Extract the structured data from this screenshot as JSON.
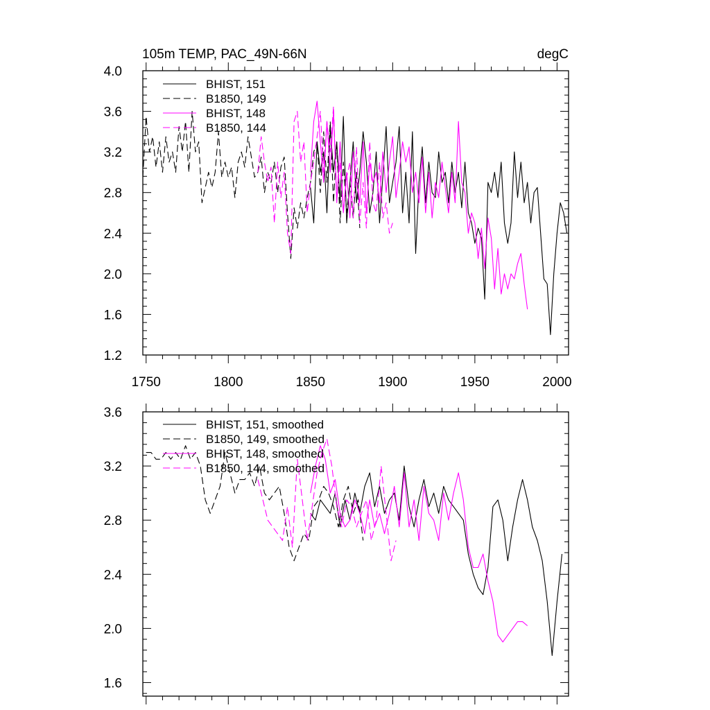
{
  "chart_data": [
    {
      "type": "line",
      "title": "105m TEMP, PAC_49N-66N",
      "units": "degC",
      "xlim": [
        1748,
        2007
      ],
      "ylim": [
        1.2,
        4.0
      ],
      "xticks": [
        1750,
        1800,
        1850,
        1900,
        1950,
        2000
      ],
      "yticks": [
        1.2,
        1.6,
        2.0,
        2.4,
        2.8,
        3.2,
        3.6,
        4.0
      ],
      "ytick_labels": [
        "1.2",
        "1.6",
        "2.0",
        "2.4",
        "2.8",
        "3.2",
        "3.6",
        "4.0"
      ],
      "xtick_labels": [
        "1750",
        "1800",
        "1850",
        "1900",
        "1950",
        "2000"
      ],
      "grid": false,
      "legend_position": "top-left",
      "series": [
        {
          "name": "BHIST, 151",
          "color": "#000000",
          "dash": "solid",
          "x": [
            1850,
            1852,
            1854,
            1856,
            1858,
            1860,
            1862,
            1864,
            1866,
            1868,
            1870,
            1872,
            1874,
            1876,
            1878,
            1880,
            1882,
            1884,
            1886,
            1888,
            1890,
            1892,
            1894,
            1896,
            1898,
            1900,
            1902,
            1904,
            1906,
            1908,
            1910,
            1912,
            1914,
            1916,
            1918,
            1920,
            1922,
            1924,
            1926,
            1928,
            1930,
            1932,
            1934,
            1936,
            1938,
            1940,
            1942,
            1944,
            1946,
            1948,
            1950,
            1952,
            1954,
            1956,
            1958,
            1960,
            1962,
            1964,
            1966,
            1968,
            1970,
            1972,
            1974,
            1976,
            1978,
            1980,
            1982,
            1984,
            1986,
            1988,
            1990,
            1992,
            1994,
            1996,
            1998,
            2000,
            2002,
            2004,
            2006
          ],
          "values": [
            2.85,
            2.5,
            3.3,
            3.0,
            3.2,
            2.6,
            3.45,
            3.0,
            3.3,
            2.7,
            3.55,
            2.5,
            2.9,
            3.3,
            2.7,
            3.0,
            3.4,
            3.1,
            2.6,
            2.8,
            3.2,
            2.5,
            2.95,
            3.45,
            2.7,
            2.9,
            3.1,
            3.45,
            2.6,
            3.0,
            2.5,
            3.4,
            2.2,
            2.9,
            3.25,
            2.7,
            3.1,
            2.8,
            2.75,
            3.2,
            2.9,
            3.0,
            2.7,
            3.1,
            2.8,
            3.0,
            2.65,
            3.1,
            2.6,
            2.5,
            2.3,
            2.45,
            2.35,
            1.75,
            2.9,
            2.8,
            3.0,
            2.75,
            3.1,
            2.5,
            2.3,
            2.5,
            3.2,
            2.75,
            3.1,
            2.7,
            2.9,
            2.5,
            2.8,
            2.85,
            2.4,
            1.95,
            1.9,
            1.4,
            2.0,
            2.4,
            2.7,
            2.6,
            2.4
          ]
        },
        {
          "name": "B1850, 149",
          "color": "#000000",
          "dash": "dashed",
          "x": [
            1748,
            1750,
            1752,
            1754,
            1756,
            1758,
            1760,
            1762,
            1764,
            1766,
            1768,
            1770,
            1772,
            1774,
            1776,
            1778,
            1780,
            1782,
            1784,
            1786,
            1788,
            1790,
            1792,
            1794,
            1796,
            1798,
            1800,
            1802,
            1804,
            1806,
            1808,
            1810,
            1812,
            1814,
            1816,
            1818,
            1820,
            1822,
            1824,
            1826,
            1828,
            1830,
            1832,
            1834,
            1836,
            1838,
            1840,
            1842,
            1844,
            1846,
            1848,
            1850,
            1852,
            1854,
            1856,
            1858,
            1860,
            1862,
            1864,
            1866,
            1868,
            1870,
            1872,
            1874,
            1876,
            1878,
            1880
          ],
          "values": [
            2.95,
            3.55,
            3.2,
            3.35,
            3.05,
            3.3,
            3.0,
            3.35,
            3.1,
            3.2,
            3.0,
            3.45,
            3.2,
            3.5,
            3.0,
            3.6,
            3.2,
            3.3,
            2.7,
            2.85,
            3.0,
            2.85,
            3.0,
            3.4,
            2.95,
            3.1,
            2.95,
            3.05,
            2.75,
            3.1,
            3.2,
            3.05,
            3.35,
            3.15,
            2.95,
            3.0,
            3.15,
            2.8,
            3.0,
            2.9,
            3.1,
            2.8,
            3.05,
            3.15,
            2.6,
            2.15,
            2.65,
            2.45,
            2.7,
            2.55,
            2.75,
            2.9,
            3.2,
            3.3,
            2.8,
            3.4,
            2.9,
            3.5,
            2.7,
            3.3,
            2.5,
            3.1,
            2.6,
            2.9,
            2.55,
            3.0,
            2.45
          ]
        },
        {
          "name": "BHIST, 148",
          "color": "#ff00ff",
          "dash": "solid",
          "x": [
            1850,
            1852,
            1854,
            1856,
            1858,
            1860,
            1862,
            1864,
            1866,
            1868,
            1870,
            1872,
            1874,
            1876,
            1878,
            1880,
            1882,
            1884,
            1886,
            1888,
            1890,
            1892,
            1894,
            1896,
            1898,
            1900,
            1902,
            1904,
            1906,
            1908,
            1910,
            1912,
            1914,
            1916,
            1918,
            1920,
            1922,
            1924,
            1926,
            1928,
            1930,
            1932,
            1934,
            1936,
            1938,
            1940,
            1942,
            1944,
            1946,
            1948,
            1950,
            1952,
            1954,
            1956,
            1958,
            1960,
            1962,
            1964,
            1966,
            1968,
            1970,
            1972,
            1974,
            1976,
            1978,
            1980,
            1982
          ],
          "values": [
            3.0,
            3.5,
            3.7,
            3.3,
            2.9,
            3.5,
            3.0,
            3.6,
            2.7,
            3.3,
            2.6,
            3.0,
            2.55,
            3.2,
            2.9,
            2.7,
            3.3,
            2.6,
            3.1,
            2.9,
            3.0,
            2.7,
            3.2,
            2.8,
            3.1,
            3.35,
            2.75,
            3.0,
            3.3,
            3.1,
            3.25,
            2.8,
            3.0,
            2.7,
            3.15,
            2.6,
            3.0,
            2.55,
            2.9,
            2.75,
            3.1,
            2.85,
            2.6,
            3.0,
            2.7,
            3.5,
            2.9,
            2.8,
            2.4,
            2.6,
            2.5,
            2.15,
            2.45,
            2.05,
            2.55,
            2.35,
            1.85,
            2.25,
            1.8,
            2.0,
            1.85,
            2.0,
            1.95,
            2.1,
            2.2,
            1.9,
            1.65
          ]
        },
        {
          "name": "B1850, 144",
          "color": "#ff00ff",
          "dash": "dashed",
          "x": [
            1818,
            1820,
            1822,
            1824,
            1826,
            1828,
            1830,
            1832,
            1834,
            1836,
            1838,
            1840,
            1842,
            1844,
            1846,
            1848,
            1850,
            1852,
            1854,
            1856,
            1858,
            1860,
            1862,
            1864,
            1866,
            1868,
            1870,
            1872,
            1874,
            1876,
            1878,
            1880,
            1882,
            1884,
            1886,
            1888,
            1890,
            1892,
            1894,
            1896,
            1898,
            1900
          ],
          "values": [
            3.0,
            3.35,
            3.1,
            2.9,
            3.05,
            2.5,
            3.1,
            2.75,
            3.0,
            2.4,
            2.2,
            3.5,
            3.6,
            3.1,
            3.3,
            2.6,
            2.9,
            3.1,
            3.35,
            3.6,
            3.0,
            3.5,
            3.2,
            3.65,
            2.75,
            3.1,
            2.6,
            2.95,
            3.1,
            2.55,
            3.25,
            2.5,
            2.9,
            2.45,
            3.3,
            2.7,
            2.6,
            3.1,
            2.55,
            2.7,
            2.4,
            2.5
          ]
        }
      ]
    },
    {
      "type": "line",
      "xlim": [
        1748,
        2007
      ],
      "ylim": [
        1.5,
        3.6
      ],
      "yticks": [
        1.6,
        2.0,
        2.4,
        2.8,
        3.2,
        3.6
      ],
      "ytick_labels": [
        "1.6",
        "2.0",
        "2.4",
        "2.8",
        "3.2",
        "3.6"
      ],
      "grid": false,
      "legend_position": "top-left",
      "series": [
        {
          "name": "BHIST, 151, smoothed",
          "color": "#000000",
          "dash": "solid",
          "x": [
            1850,
            1853,
            1856,
            1859,
            1862,
            1865,
            1868,
            1871,
            1874,
            1877,
            1880,
            1883,
            1886,
            1889,
            1892,
            1895,
            1898,
            1901,
            1904,
            1907,
            1910,
            1913,
            1916,
            1919,
            1922,
            1925,
            1928,
            1931,
            1934,
            1937,
            1940,
            1943,
            1946,
            1949,
            1952,
            1955,
            1958,
            1961,
            1964,
            1967,
            1970,
            1973,
            1976,
            1979,
            1982,
            1985,
            1988,
            1991,
            1994,
            1997,
            2000,
            2003
          ],
          "values": [
            2.85,
            2.8,
            2.95,
            2.9,
            2.85,
            3.0,
            2.75,
            2.95,
            2.8,
            3.0,
            2.85,
            3.05,
            3.15,
            2.9,
            3.05,
            2.85,
            2.95,
            3.0,
            2.8,
            3.2,
            2.9,
            2.75,
            2.95,
            3.1,
            2.9,
            3.0,
            2.85,
            3.05,
            2.95,
            2.9,
            2.85,
            2.8,
            2.55,
            2.4,
            2.3,
            2.25,
            2.45,
            2.9,
            2.95,
            2.8,
            2.5,
            2.75,
            2.95,
            3.1,
            2.95,
            2.75,
            2.65,
            2.5,
            2.2,
            1.8,
            2.2,
            2.55
          ]
        },
        {
          "name": "B1850, 149, smoothed",
          "color": "#000000",
          "dash": "dashed",
          "x": [
            1750,
            1753,
            1756,
            1759,
            1762,
            1765,
            1768,
            1771,
            1774,
            1777,
            1780,
            1783,
            1786,
            1789,
            1792,
            1795,
            1798,
            1801,
            1804,
            1807,
            1810,
            1813,
            1816,
            1819,
            1822,
            1825,
            1828,
            1831,
            1834,
            1837,
            1840,
            1843,
            1846,
            1849,
            1852,
            1855,
            1858,
            1861,
            1864,
            1867,
            1870,
            1873,
            1876,
            1879,
            1882
          ],
          "values": [
            3.3,
            3.3,
            3.25,
            3.25,
            3.3,
            3.25,
            3.3,
            3.25,
            3.35,
            3.25,
            3.3,
            3.2,
            2.95,
            2.85,
            2.95,
            3.05,
            3.3,
            3.15,
            3.0,
            3.1,
            3.1,
            3.15,
            3.05,
            3.2,
            3.0,
            2.95,
            3.0,
            3.05,
            2.85,
            2.6,
            2.5,
            2.6,
            2.7,
            2.65,
            2.9,
            2.95,
            3.05,
            3.0,
            2.9,
            2.75,
            2.95,
            3.05,
            2.85,
            2.95,
            2.65
          ]
        },
        {
          "name": "BHIST, 148, smoothed",
          "color": "#ff00ff",
          "dash": "solid",
          "x": [
            1850,
            1853,
            1856,
            1859,
            1862,
            1865,
            1868,
            1871,
            1874,
            1877,
            1880,
            1883,
            1886,
            1889,
            1892,
            1895,
            1898,
            1901,
            1904,
            1907,
            1910,
            1913,
            1916,
            1919,
            1922,
            1925,
            1928,
            1931,
            1934,
            1937,
            1940,
            1943,
            1946,
            1949,
            1952,
            1955,
            1958,
            1961,
            1964,
            1967,
            1970,
            1973,
            1976,
            1979,
            1982
          ],
          "values": [
            3.0,
            3.2,
            3.35,
            3.25,
            3.0,
            3.1,
            2.85,
            2.75,
            2.8,
            2.95,
            2.85,
            2.7,
            2.95,
            2.75,
            2.85,
            2.7,
            2.85,
            3.05,
            2.75,
            3.15,
            2.75,
            2.95,
            2.65,
            3.05,
            2.85,
            2.8,
            2.65,
            3.0,
            2.8,
            3.0,
            3.15,
            2.95,
            2.6,
            2.45,
            2.45,
            2.55,
            2.35,
            2.2,
            1.95,
            1.9,
            1.95,
            2.0,
            2.05,
            2.05,
            2.02
          ]
        },
        {
          "name": "B1850, 144, smoothed",
          "color": "#ff00ff",
          "dash": "dashed",
          "x": [
            1818,
            1821,
            1824,
            1827,
            1830,
            1833,
            1836,
            1839,
            1842,
            1845,
            1848,
            1851,
            1854,
            1857,
            1860,
            1863,
            1866,
            1869,
            1872,
            1875,
            1878,
            1881,
            1884,
            1887,
            1890,
            1893,
            1896,
            1899,
            1902
          ],
          "values": [
            3.1,
            2.95,
            2.8,
            2.75,
            2.7,
            2.65,
            2.9,
            2.6,
            3.25,
            2.95,
            2.65,
            2.9,
            3.15,
            3.3,
            3.4,
            3.2,
            2.9,
            2.75,
            2.95,
            2.9,
            2.75,
            2.85,
            2.95,
            2.65,
            2.8,
            3.2,
            2.85,
            2.5,
            2.65
          ]
        }
      ]
    }
  ]
}
